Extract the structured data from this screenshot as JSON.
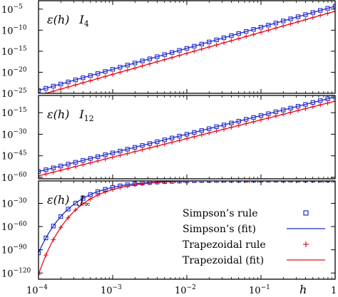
{
  "chart_data": [
    {
      "type": "scatter",
      "panel_label": {
        "symbol": "ε(h)",
        "name": "I",
        "subscript": "4"
      },
      "x_scale": "log",
      "y_scale": "log",
      "xlim": [
        0.0001,
        1
      ],
      "ylim": [
        1e-25,
        0.001
      ],
      "yticks": [
        {
          "base": "10",
          "exp": "−5",
          "value": -5
        },
        {
          "base": "10",
          "exp": "−10",
          "value": -10
        },
        {
          "base": "10",
          "exp": "−15",
          "value": -15
        },
        {
          "base": "10",
          "exp": "−20",
          "value": -20
        },
        {
          "base": "10",
          "exp": "−25",
          "value": -25
        }
      ],
      "series": [
        {
          "name": "Simpson's rule",
          "kind": "markers",
          "marker": "square",
          "color": "#1f2bcc",
          "fit": {
            "log_intercept": -4.3,
            "slope": 5.0
          }
        },
        {
          "name": "Simpson's (fit)",
          "kind": "line",
          "color": "#1f2bcc",
          "fit": {
            "log_intercept": -4.3,
            "slope": 5.0
          }
        },
        {
          "name": "Trapezoidal rule",
          "kind": "markers",
          "marker": "plus",
          "color": "#e8101e",
          "fit": {
            "log_intercept": -5.5,
            "slope": 5.0
          }
        },
        {
          "name": "Trapezoidal (fit)",
          "kind": "line",
          "color": "#e8101e",
          "fit": {
            "log_intercept": -5.5,
            "slope": 5.0
          }
        }
      ]
    },
    {
      "type": "scatter",
      "panel_label": {
        "symbol": "ε(h)",
        "name": "I",
        "subscript": "12"
      },
      "x_scale": "log",
      "y_scale": "log",
      "xlim": [
        0.0001,
        1
      ],
      "ylim": [
        1e-61,
        0.001
      ],
      "yticks": [
        {
          "base": "10",
          "exp": "−15",
          "value": -15
        },
        {
          "base": "10",
          "exp": "−30",
          "value": -30
        },
        {
          "base": "10",
          "exp": "−45",
          "value": -45
        },
        {
          "base": "10",
          "exp": "−60",
          "value": -60
        }
      ],
      "series": [
        {
          "name": "Simpson's rule",
          "kind": "markers",
          "marker": "square",
          "color": "#1f2bcc",
          "fit": {
            "log_intercept": -4.0,
            "slope": 13.0
          }
        },
        {
          "name": "Simpson's (fit)",
          "kind": "line",
          "color": "#1f2bcc",
          "fit": {
            "log_intercept": -4.0,
            "slope": 13.0
          }
        },
        {
          "name": "Trapezoidal rule",
          "kind": "markers",
          "marker": "plus",
          "color": "#e8101e",
          "fit": {
            "log_intercept": -7.0,
            "slope": 13.0
          }
        },
        {
          "name": "Trapezoidal (fit)",
          "kind": "line",
          "color": "#e8101e",
          "fit": {
            "log_intercept": -7.0,
            "slope": 13.0
          }
        }
      ]
    },
    {
      "type": "scatter",
      "panel_label": {
        "symbol": "ε(h)",
        "name": "J",
        "subscript": "∞"
      },
      "x_scale": "log",
      "y_scale": "log",
      "xlim": [
        0.0001,
        1
      ],
      "ylim": [
        1e-128,
        0.1
      ],
      "yticks": [
        {
          "base": "10",
          "exp": "−30",
          "value": -30
        },
        {
          "base": "10",
          "exp": "−60",
          "value": -60
        },
        {
          "base": "10",
          "exp": "−90",
          "value": -90
        },
        {
          "base": "10",
          "exp": "−120",
          "value": -120
        }
      ],
      "series": [
        {
          "name": "Simpson's rule",
          "kind": "markers",
          "marker": "square",
          "color": "#1f2bcc",
          "fit": {
            "log_coefficient": -0.0094,
            "power": -1
          }
        },
        {
          "name": "Simpson's (fit)",
          "kind": "line",
          "color": "#1f2bcc",
          "fit": {
            "log_coefficient": -0.0094,
            "power": -1
          }
        },
        {
          "name": "Trapezoidal rule",
          "kind": "markers",
          "marker": "plus",
          "color": "#e8101e",
          "fit": {
            "log_coefficient": -0.0122,
            "power": -1
          }
        },
        {
          "name": "Trapezoidal (fit)",
          "kind": "line",
          "color": "#e8101e",
          "fit": {
            "log_coefficient": -0.0122,
            "power": -1
          }
        }
      ]
    }
  ],
  "x_axis": {
    "label": "h",
    "ticks": [
      {
        "base": "10",
        "exp": "−4",
        "value": -4
      },
      {
        "base": "10",
        "exp": "−3",
        "value": -3
      },
      {
        "base": "10",
        "exp": "−2",
        "value": -2
      },
      {
        "base": "10",
        "exp": "−1",
        "value": -1
      },
      {
        "base": "1",
        "exp": "",
        "value": 0
      }
    ]
  },
  "legend": {
    "placement": "bottom-right of lowest panel",
    "entries": [
      {
        "label": "Simpson’s rule",
        "symbol": "square",
        "color": "#1f2bcc"
      },
      {
        "label": "Simpson’s (fit)",
        "symbol": "line",
        "color": "#1f2bcc"
      },
      {
        "label": "Trapezoidal rule",
        "symbol": "plus",
        "color": "#e8101e"
      },
      {
        "label": "Trapezoidal (fit)",
        "symbol": "line",
        "color": "#e8101e"
      }
    ]
  }
}
